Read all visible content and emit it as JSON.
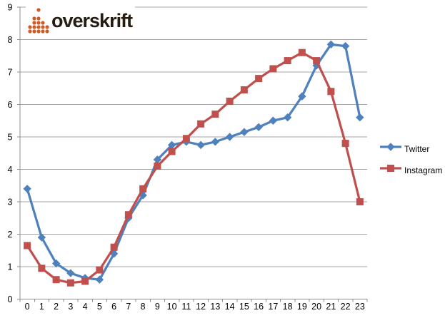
{
  "logo": {
    "text": "overskrift",
    "icon": "dot-matrix-logo-icon",
    "icon_color": "#cd5b25",
    "text_color": "#261c12"
  },
  "chart_data": {
    "type": "line",
    "title": "",
    "xlabel": "",
    "ylabel": "",
    "categories": [
      "0",
      "1",
      "2",
      "3",
      "4",
      "5",
      "6",
      "7",
      "8",
      "9",
      "10",
      "11",
      "12",
      "13",
      "14",
      "15",
      "16",
      "17",
      "18",
      "19",
      "20",
      "21",
      "22",
      "23"
    ],
    "series": [
      {
        "name": "Twitter",
        "color": "#4f81bd",
        "marker": "diamond",
        "values": [
          3.4,
          1.9,
          1.1,
          0.8,
          0.65,
          0.6,
          1.4,
          2.5,
          3.2,
          4.3,
          4.75,
          4.85,
          4.75,
          4.85,
          5.0,
          5.15,
          5.3,
          5.5,
          5.6,
          6.25,
          7.2,
          7.85,
          7.8,
          5.6
        ]
      },
      {
        "name": "Instagram",
        "color": "#c0504d",
        "marker": "square",
        "values": [
          1.65,
          0.95,
          0.6,
          0.5,
          0.55,
          0.9,
          1.6,
          2.6,
          3.4,
          4.1,
          4.55,
          4.95,
          5.4,
          5.7,
          6.1,
          6.45,
          6.8,
          7.1,
          7.35,
          7.6,
          7.35,
          6.4,
          4.8,
          3.0
        ]
      }
    ],
    "ylim": [
      0,
      9
    ],
    "y_ticks": [
      "0",
      "1",
      "2",
      "3",
      "4",
      "5",
      "6",
      "7",
      "8",
      "9"
    ],
    "grid": true,
    "legend_position": "right",
    "grid_color": "#a6a6a6",
    "axis_color": "#8e8e8e",
    "label_color": "#000000"
  }
}
